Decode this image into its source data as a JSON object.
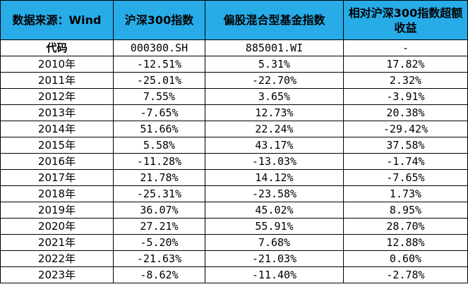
{
  "headers": {
    "col1": "数据来源：Wind",
    "col2": "沪深300指数",
    "col3": "偏股混合型基金指数",
    "col4": "相对沪深300指数超额收益"
  },
  "code_row": {
    "label": "代码",
    "col2": "000300.SH",
    "col3": "885001.WI",
    "col4": "-"
  },
  "rows": [
    {
      "year": "2010年",
      "csi300": "-12.51%",
      "fund": "5.31%",
      "excess": "17.82%",
      "sign": "pos"
    },
    {
      "year": "2011年",
      "csi300": "-25.01%",
      "fund": "-22.70%",
      "excess": "2.32%",
      "sign": "pos"
    },
    {
      "year": "2012年",
      "csi300": "7.55%",
      "fund": "3.65%",
      "excess": "-3.91%",
      "sign": "neg"
    },
    {
      "year": "2013年",
      "csi300": "-7.65%",
      "fund": "12.73%",
      "excess": "20.38%",
      "sign": "pos"
    },
    {
      "year": "2014年",
      "csi300": "51.66%",
      "fund": "22.24%",
      "excess": "-29.42%",
      "sign": "neg"
    },
    {
      "year": "2015年",
      "csi300": "5.58%",
      "fund": "43.17%",
      "excess": "37.58%",
      "sign": "pos"
    },
    {
      "year": "2016年",
      "csi300": "-11.28%",
      "fund": "-13.03%",
      "excess": "-1.74%",
      "sign": "neg"
    },
    {
      "year": "2017年",
      "csi300": "21.78%",
      "fund": "14.12%",
      "excess": "-7.65%",
      "sign": "neg"
    },
    {
      "year": "2018年",
      "csi300": "-25.31%",
      "fund": "-23.58%",
      "excess": "1.73%",
      "sign": "pos"
    },
    {
      "year": "2019年",
      "csi300": "36.07%",
      "fund": "45.02%",
      "excess": "8.95%",
      "sign": "pos"
    },
    {
      "year": "2020年",
      "csi300": "27.21%",
      "fund": "55.91%",
      "excess": "28.70%",
      "sign": "pos"
    },
    {
      "year": "2021年",
      "csi300": "-5.20%",
      "fund": "7.68%",
      "excess": "12.88%",
      "sign": "pos"
    },
    {
      "year": "2022年",
      "csi300": "-21.63%",
      "fund": "-21.03%",
      "excess": "0.60%",
      "sign": "pos"
    },
    {
      "year": "2023年",
      "csi300": "-8.62%",
      "fund": "-11.40%",
      "excess": "-2.78%",
      "sign": "neg"
    }
  ],
  "colors": {
    "header_bg": "#27ace8",
    "positive": "#ff0000",
    "negative": "#1aa84a",
    "border": "#000000"
  }
}
